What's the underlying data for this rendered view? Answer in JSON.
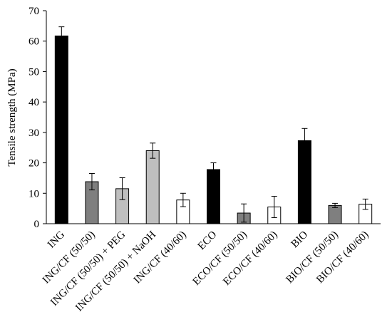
{
  "chart_data": {
    "type": "bar",
    "title": "",
    "xlabel": "",
    "ylabel": "Tensile strength (MPa)",
    "ylim": [
      0,
      70
    ],
    "yticks": [
      0,
      10,
      20,
      30,
      40,
      50,
      60,
      70
    ],
    "grid": false,
    "legend": "none",
    "categories": [
      "ING",
      "ING/CF (50/50)",
      "ING/CF (50/50) + PEG",
      "ING/CF (50/50) + NaOH",
      "ING/CF (40/60)",
      "ECO",
      "ECO/CF (50/50)",
      "ECO/CF (40/60)",
      "BIO",
      "BIO/CF (50/50)",
      "BIO/CF (40/60)"
    ],
    "values": [
      61.7,
      13.8,
      11.5,
      24.0,
      7.8,
      17.8,
      3.5,
      5.5,
      27.3,
      6.0,
      6.4
    ],
    "errors": [
      3.0,
      2.7,
      3.6,
      2.5,
      2.2,
      2.2,
      3.0,
      3.5,
      4.0,
      0.7,
      1.7
    ],
    "colors": [
      "#000000",
      "#7f7f7f",
      "#bfbfbf",
      "#bfbfbf",
      "#ffffff",
      "#000000",
      "#7f7f7f",
      "#ffffff",
      "#000000",
      "#7f7f7f",
      "#ffffff"
    ]
  }
}
